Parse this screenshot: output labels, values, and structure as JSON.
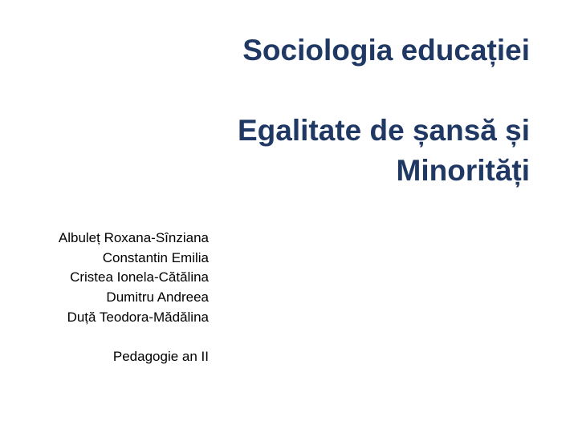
{
  "slide": {
    "title": {
      "line1": "Sociologia educației",
      "line2": "Egalitate de șansă și",
      "line3": "Minorități"
    },
    "authors": {
      "name1": "Albuleț Roxana-Sînziana",
      "name2": "Constantin Emilia",
      "name3": "Cristea Ionela-Cătălina",
      "name4": "Dumitru Andreea",
      "name5": "Duță Teodora-Mădălina",
      "footer": "Pedagogie an II"
    },
    "styling": {
      "background_color": "#ffffff",
      "title_color": "#203864",
      "title_fontsize": 37,
      "title_fontweight": "bold",
      "title_align": "right",
      "authors_color": "#000000",
      "authors_fontsize": 17,
      "authors_align": "right",
      "font_family": "Arial"
    }
  }
}
